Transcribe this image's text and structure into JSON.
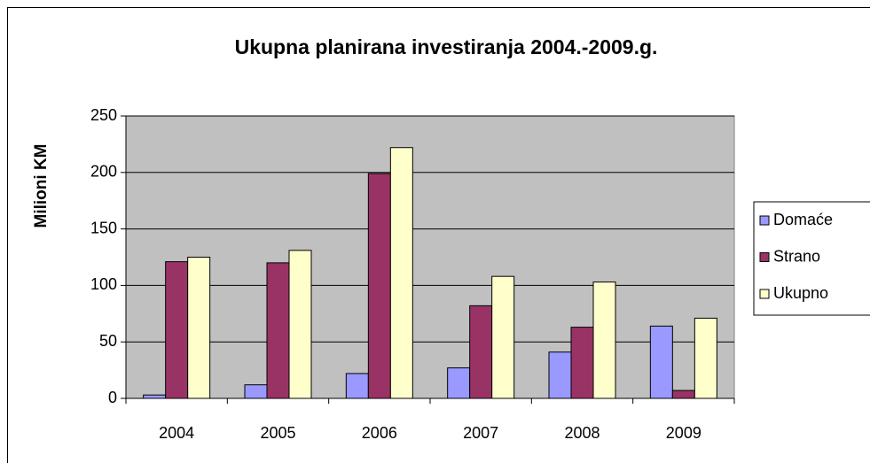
{
  "chart_data": {
    "type": "bar",
    "title": "Ukupna planirana investiranja 2004.-2009.g.",
    "y_label": "Milioni KM",
    "categories": [
      "2004",
      "2005",
      "2006",
      "2007",
      "2008",
      "2009"
    ],
    "series": [
      {
        "name": "Domaće",
        "color": "#9999ff",
        "values": [
          3,
          12,
          22,
          27,
          41,
          64
        ]
      },
      {
        "name": "Strano",
        "color": "#993366",
        "values": [
          121,
          120,
          199,
          82,
          63,
          7
        ]
      },
      {
        "name": "Ukupno",
        "color": "#ffffcc",
        "values": [
          125,
          131,
          222,
          108,
          103,
          71
        ]
      }
    ],
    "ylim": [
      0,
      250
    ],
    "yticks": [
      0,
      50,
      100,
      150,
      200,
      250
    ],
    "grid": true,
    "legend": "right",
    "plot_background": "#c0c0c0"
  }
}
